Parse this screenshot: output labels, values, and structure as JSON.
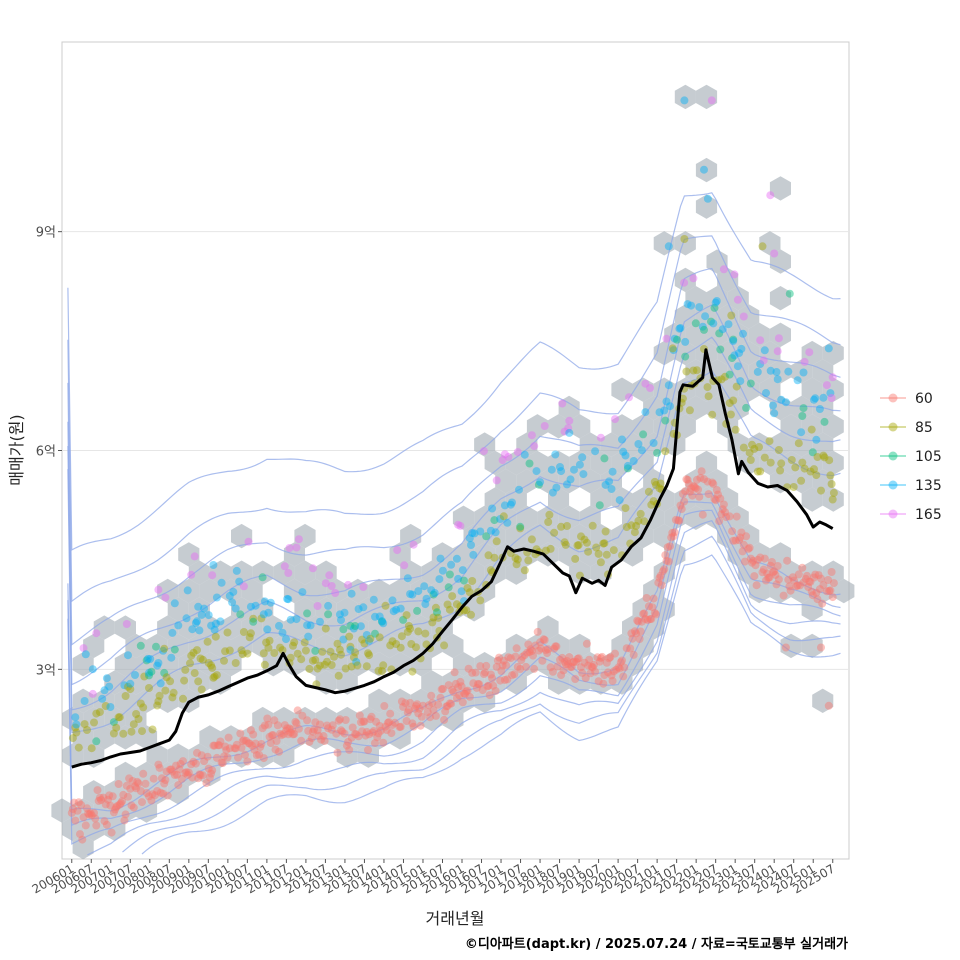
{
  "chart_data": {
    "type": "scatter",
    "title": "",
    "xlabel": "거래년월",
    "ylabel": "매매가(원)",
    "caption": "©디아파트(dapt.kr) / 2025.07.24 / 자료=국토교통부 실거래가",
    "x_tick_labels": [
      "200601",
      "200607",
      "200701",
      "200707",
      "200801",
      "200807",
      "200901",
      "200907",
      "201001",
      "201007",
      "201101",
      "201107",
      "201201",
      "201207",
      "201301",
      "201307",
      "201401",
      "201407",
      "201501",
      "201507",
      "201601",
      "201607",
      "201701",
      "201707",
      "201801",
      "201807",
      "201901",
      "201907",
      "202001",
      "202007",
      "202101",
      "202107",
      "202201",
      "202207",
      "202301",
      "202307",
      "202401",
      "202407",
      "202501",
      "202507"
    ],
    "xlim": [
      "2005-10",
      "2025-12"
    ],
    "y_ticks": [
      {
        "value": 300000000,
        "label": "3억"
      },
      {
        "value": 600000000,
        "label": "6억"
      },
      {
        "value": 900000000,
        "label": "9억"
      }
    ],
    "ylim": [
      40000000,
      1160000000
    ],
    "grid": true,
    "legend": {
      "placement": "right",
      "entries": [
        {
          "name": "60",
          "color": "#F8766D"
        },
        {
          "name": "85",
          "color": "#A3A500"
        },
        {
          "name": "105",
          "color": "#00BF7D"
        },
        {
          "name": "135",
          "color": "#00B0F6"
        },
        {
          "name": "165",
          "color": "#E76BF3"
        }
      ]
    },
    "median_line_color": "#000000",
    "contour_color": "#8fa8e8",
    "hex_color": "#a8b0b8",
    "median_price": [
      [
        "2006-01",
        166000000
      ],
      [
        "2006-04",
        170000000
      ],
      [
        "2006-07",
        172000000
      ],
      [
        "2006-10",
        175000000
      ],
      [
        "2007-01",
        180000000
      ],
      [
        "2007-04",
        184000000
      ],
      [
        "2007-07",
        186000000
      ],
      [
        "2007-10",
        188000000
      ],
      [
        "2008-01",
        193000000
      ],
      [
        "2008-04",
        198000000
      ],
      [
        "2008-07",
        203000000
      ],
      [
        "2008-09",
        215000000
      ],
      [
        "2008-11",
        240000000
      ],
      [
        "2009-01",
        255000000
      ],
      [
        "2009-04",
        262000000
      ],
      [
        "2009-07",
        265000000
      ],
      [
        "2009-10",
        270000000
      ],
      [
        "2010-01",
        276000000
      ],
      [
        "2010-04",
        282000000
      ],
      [
        "2010-07",
        288000000
      ],
      [
        "2010-10",
        292000000
      ],
      [
        "2011-01",
        298000000
      ],
      [
        "2011-04",
        305000000
      ],
      [
        "2011-06",
        322000000
      ],
      [
        "2011-08",
        305000000
      ],
      [
        "2011-10",
        290000000
      ],
      [
        "2012-01",
        278000000
      ],
      [
        "2012-04",
        275000000
      ],
      [
        "2012-07",
        272000000
      ],
      [
        "2012-10",
        268000000
      ],
      [
        "2013-01",
        270000000
      ],
      [
        "2013-04",
        274000000
      ],
      [
        "2013-07",
        278000000
      ],
      [
        "2013-10",
        283000000
      ],
      [
        "2014-01",
        290000000
      ],
      [
        "2014-04",
        296000000
      ],
      [
        "2014-07",
        305000000
      ],
      [
        "2014-10",
        312000000
      ],
      [
        "2015-01",
        322000000
      ],
      [
        "2015-04",
        335000000
      ],
      [
        "2015-07",
        352000000
      ],
      [
        "2015-10",
        368000000
      ],
      [
        "2016-01",
        385000000
      ],
      [
        "2016-04",
        400000000
      ],
      [
        "2016-07",
        408000000
      ],
      [
        "2016-10",
        420000000
      ],
      [
        "2017-01",
        448000000
      ],
      [
        "2017-03",
        468000000
      ],
      [
        "2017-05",
        462000000
      ],
      [
        "2017-08",
        465000000
      ],
      [
        "2017-11",
        462000000
      ],
      [
        "2018-02",
        458000000
      ],
      [
        "2018-05",
        445000000
      ],
      [
        "2018-08",
        432000000
      ],
      [
        "2018-10",
        428000000
      ],
      [
        "2018-12",
        405000000
      ],
      [
        "2019-02",
        425000000
      ],
      [
        "2019-05",
        418000000
      ],
      [
        "2019-07",
        422000000
      ],
      [
        "2019-09",
        415000000
      ],
      [
        "2019-11",
        440000000
      ],
      [
        "2020-02",
        450000000
      ],
      [
        "2020-05",
        468000000
      ],
      [
        "2020-08",
        480000000
      ],
      [
        "2020-11",
        505000000
      ],
      [
        "2021-02",
        535000000
      ],
      [
        "2021-04",
        552000000
      ],
      [
        "2021-06",
        575000000
      ],
      [
        "2021-08",
        680000000
      ],
      [
        "2021-09",
        690000000
      ],
      [
        "2021-12",
        688000000
      ],
      [
        "2022-03",
        700000000
      ],
      [
        "2022-04",
        738000000
      ],
      [
        "2022-06",
        700000000
      ],
      [
        "2022-08",
        690000000
      ],
      [
        "2022-10",
        650000000
      ],
      [
        "2022-12",
        615000000
      ],
      [
        "2023-02",
        568000000
      ],
      [
        "2023-03",
        585000000
      ],
      [
        "2023-05",
        570000000
      ],
      [
        "2023-08",
        555000000
      ],
      [
        "2023-11",
        550000000
      ],
      [
        "2024-02",
        552000000
      ],
      [
        "2024-05",
        545000000
      ],
      [
        "2024-08",
        530000000
      ],
      [
        "2024-11",
        512000000
      ],
      [
        "2025-01",
        495000000
      ],
      [
        "2025-03",
        502000000
      ],
      [
        "2025-05",
        498000000
      ],
      [
        "2025-07",
        493000000
      ]
    ]
  }
}
